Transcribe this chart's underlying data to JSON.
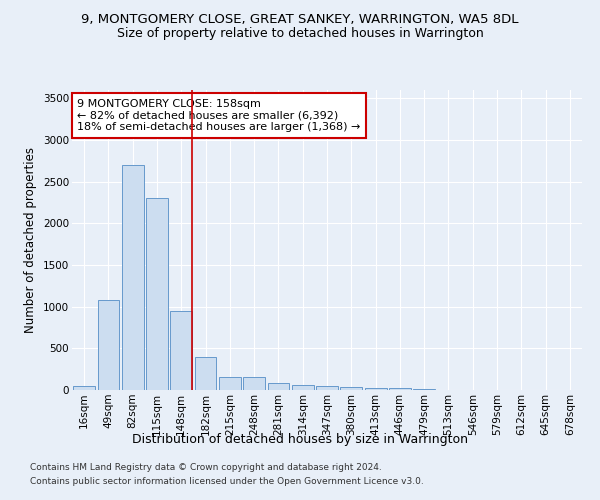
{
  "title": "9, MONTGOMERY CLOSE, GREAT SANKEY, WARRINGTON, WA5 8DL",
  "subtitle": "Size of property relative to detached houses in Warrington",
  "xlabel": "Distribution of detached houses by size in Warrington",
  "ylabel": "Number of detached properties",
  "categories": [
    "16sqm",
    "49sqm",
    "82sqm",
    "115sqm",
    "148sqm",
    "182sqm",
    "215sqm",
    "248sqm",
    "281sqm",
    "314sqm",
    "347sqm",
    "380sqm",
    "413sqm",
    "446sqm",
    "479sqm",
    "513sqm",
    "546sqm",
    "579sqm",
    "612sqm",
    "645sqm",
    "678sqm"
  ],
  "values": [
    50,
    1075,
    2700,
    2300,
    950,
    400,
    155,
    155,
    90,
    55,
    45,
    35,
    25,
    20,
    12,
    5,
    4,
    3,
    2,
    2,
    2
  ],
  "bar_color": "#ccddf0",
  "bar_edge_color": "#6699cc",
  "vline_color": "#cc0000",
  "annotation_text": "9 MONTGOMERY CLOSE: 158sqm\n← 82% of detached houses are smaller (6,392)\n18% of semi-detached houses are larger (1,368) →",
  "annotation_box_color": "#ffffff",
  "annotation_box_edge": "#cc0000",
  "ylim": [
    0,
    3600
  ],
  "yticks": [
    0,
    500,
    1000,
    1500,
    2000,
    2500,
    3000,
    3500
  ],
  "footer1": "Contains HM Land Registry data © Crown copyright and database right 2024.",
  "footer2": "Contains public sector information licensed under the Open Government Licence v3.0.",
  "bg_color": "#e8eff8",
  "grid_color": "#ffffff",
  "title_fontsize": 9.5,
  "subtitle_fontsize": 9,
  "axis_label_fontsize": 8.5,
  "tick_fontsize": 7.5,
  "annotation_fontsize": 8,
  "footer_fontsize": 6.5
}
